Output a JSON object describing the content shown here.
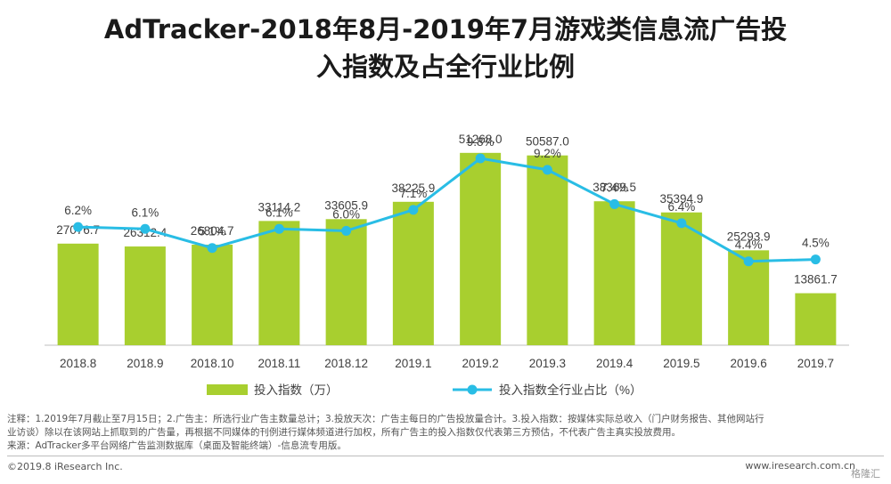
{
  "title": {
    "line1": "AdTracker-2018年8月-2019年7月游戏类信息流广告投",
    "line2": "入指数及占全行业比例"
  },
  "colors": {
    "bar": "#a8cf2f",
    "line": "#29bde5",
    "text": "#404040",
    "axis": "#bfbfbf"
  },
  "chart_data": {
    "type": "bar+line",
    "categories": [
      "2018.8",
      "2018.9",
      "2018.10",
      "2018.11",
      "2018.12",
      "2019.1",
      "2019.2",
      "2019.3",
      "2019.4",
      "2019.5",
      "2019.6",
      "2019.7"
    ],
    "series": [
      {
        "name": "投入指数（万）",
        "type": "bar",
        "values": [
          27076.7,
          26312.4,
          26804.7,
          33114.2,
          33605.9,
          38225.9,
          51268.0,
          50587.0,
          38369.5,
          35394.9,
          25293.9,
          13861.7
        ],
        "labels": [
          "27076.7",
          "26312.4",
          "26804.7",
          "33114.2",
          "33605.9",
          "38225.9",
          "51268.0",
          "50587.0",
          "38369.5",
          "35394.9",
          "25293.9",
          "13861.7"
        ]
      },
      {
        "name": "投入指数全行业占比（%）",
        "type": "line",
        "values": [
          6.2,
          6.1,
          5.1,
          6.1,
          6.0,
          7.1,
          9.8,
          9.2,
          7.4,
          6.4,
          4.4,
          4.5
        ],
        "labels": [
          "6.2%",
          "6.1%",
          "5.1%",
          "6.1%",
          "6.0%",
          "7.1%",
          "9.8%",
          "9.2%",
          "7.4%",
          "6.4%",
          "4.4%",
          "4.5%"
        ]
      }
    ],
    "ylim_bar": [
      0,
      60000
    ],
    "ylim_line": [
      0,
      14
    ]
  },
  "notes": {
    "line1": "注释：1.2019年7月截止至7月15日；2.广告主：所选行业广告主数量总计；3.投放天次：广告主每日的广告投放量合计。3.投入指数：按媒体实际总收入（门户财务报告、其他网站行",
    "line2": "业访谈）除以在该网站上抓取到的广告量，再根据不同媒体的刊例进行媒体频道进行加权，所有广告主的投入指数仅代表第三方预估，不代表广告主真实投放费用。",
    "line3": "来源：AdTracker多平台网络广告监测数据库（桌面及智能终端）-信息流专用版。"
  },
  "footer": {
    "copyright": "©2019.8 iResearch Inc.",
    "site": "www.iresearch.com.cn",
    "watermark": "格隆汇"
  }
}
